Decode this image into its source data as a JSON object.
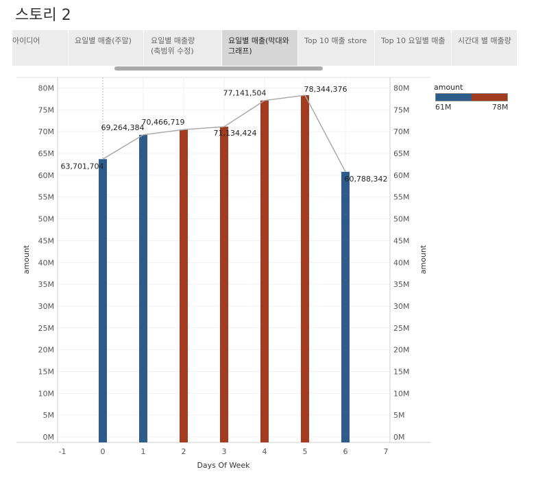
{
  "story": {
    "title": "스토리 2"
  },
  "tabs": [
    {
      "label": "아이디어",
      "active": false
    },
    {
      "label": "요일별 매출(주말)",
      "active": false
    },
    {
      "label": "요일별 매출량\n(축범위 수정)",
      "active": false
    },
    {
      "label": "요일별 매출(막대와\n그래프)",
      "active": true
    },
    {
      "label": "Top 10 매출 store",
      "active": false
    },
    {
      "label": "Top 10 요일별 매출",
      "active": false
    },
    {
      "label": "시간대 별 매출량",
      "active": false
    }
  ],
  "legend": {
    "title": "amount",
    "min_label": "61M",
    "max_label": "78M",
    "color_low": "#2e5c8a",
    "color_high": "#a33b20"
  },
  "chart_data": {
    "type": "bar",
    "x": [
      0,
      1,
      2,
      3,
      4,
      5,
      6
    ],
    "values": [
      63701704,
      69264384,
      70466719,
      71134424,
      77141504,
      78344376,
      60788342
    ],
    "data_labels": [
      "63,701,704",
      "69,264,384",
      "70,466,719",
      "71,134,424",
      "77,141,504",
      "78,344,376",
      "60,788,342"
    ],
    "bar_colors": [
      "#2e5c8a",
      "#2e5c8a",
      "#a33b20",
      "#a33b20",
      "#a33b20",
      "#a33b20",
      "#2e5c8a"
    ],
    "line": {
      "values": [
        63701704,
        69264384,
        70466719,
        71134424,
        77141504,
        78344376,
        60788342
      ],
      "color": "#aaaaaa"
    },
    "xlabel": "Days Of Week",
    "ylabel": "amount",
    "ylabel_right": "amount",
    "xlim": [
      -1,
      7
    ],
    "ylim": [
      0,
      80000000
    ],
    "x_ticks": [
      "-1",
      "0",
      "1",
      "2",
      "3",
      "4",
      "5",
      "6",
      "7"
    ],
    "y_ticks": [
      "0M",
      "5M",
      "10M",
      "15M",
      "20M",
      "25M",
      "30M",
      "35M",
      "40M",
      "45M",
      "50M",
      "55M",
      "60M",
      "65M",
      "70M",
      "75M",
      "80M"
    ],
    "grid": true,
    "legend_position": "top-right"
  }
}
